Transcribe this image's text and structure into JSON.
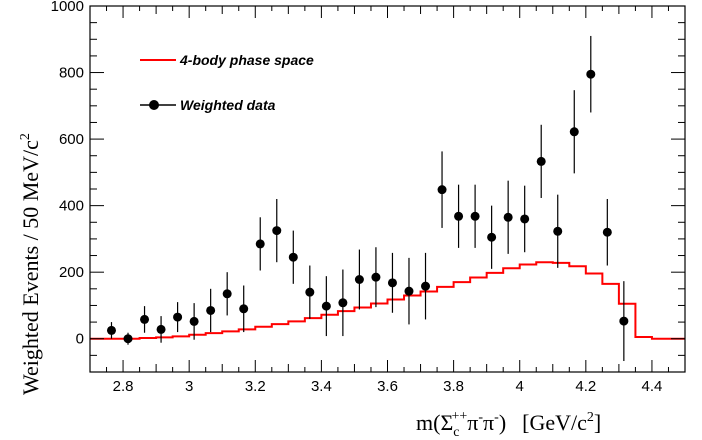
{
  "chart_data": {
    "type": "scatter",
    "xlabel_main": "m(Σ",
    "xlabel_sub": "c",
    "xlabel_sup": "++",
    "xlabel_mid": "π",
    "xlabel_sup2": "-",
    "xlabel_mid2": "π",
    "xlabel_sup3": "-",
    "xlabel_tail": ")",
    "xlabel_unit": "[GeV/c",
    "xlabel_unit_sup": "2",
    "xlabel_unit_close": "]",
    "ylabel": "Weighted Events / 50 MeV/c",
    "ylabel_sup": "2",
    "xlim": [
      2.7,
      4.5
    ],
    "ylim": [
      -100,
      1000
    ],
    "x_ticks": [
      2.8,
      3.0,
      3.2,
      3.4,
      3.6,
      3.8,
      4.0,
      4.2,
      4.4
    ],
    "x_tick_labels": [
      "2.8",
      "3",
      "3.2",
      "3.4",
      "3.6",
      "3.8",
      "4",
      "4.2",
      "4.4"
    ],
    "y_ticks": [
      0,
      200,
      400,
      600,
      800,
      1000
    ],
    "y_tick_labels": [
      "0",
      "200",
      "400",
      "600",
      "800",
      "1000"
    ],
    "grid": false,
    "legend_position": "top-left",
    "series": [
      {
        "name": "4-body phase space",
        "style": "histogram-step",
        "color": "#ff0000",
        "bin_edges": [
          2.7,
          2.75,
          2.8,
          2.85,
          2.9,
          2.95,
          3.0,
          3.05,
          3.1,
          3.15,
          3.2,
          3.25,
          3.3,
          3.35,
          3.4,
          3.45,
          3.5,
          3.55,
          3.6,
          3.65,
          3.7,
          3.75,
          3.8,
          3.85,
          3.9,
          3.95,
          4.0,
          4.05,
          4.1,
          4.15,
          4.2,
          4.25,
          4.3,
          4.35,
          4.4,
          4.45,
          4.5
        ],
        "values": [
          0,
          0,
          0,
          2,
          4,
          7,
          12,
          17,
          22,
          28,
          36,
          44,
          52,
          62,
          72,
          83,
          94,
          106,
          118,
          130,
          142,
          156,
          170,
          184,
          198,
          212,
          223,
          230,
          228,
          218,
          196,
          165,
          105,
          5,
          0,
          0
        ]
      },
      {
        "name": "Weighted data",
        "style": "points-with-errors",
        "color": "#000000",
        "x": [
          2.765,
          2.815,
          2.865,
          2.915,
          2.965,
          3.015,
          3.065,
          3.115,
          3.165,
          3.215,
          3.265,
          3.315,
          3.365,
          3.415,
          3.465,
          3.515,
          3.565,
          3.615,
          3.665,
          3.715,
          3.765,
          3.815,
          3.865,
          3.915,
          3.965,
          4.015,
          4.065,
          4.115,
          4.165,
          4.215,
          4.265,
          4.315
        ],
        "y": [
          25,
          0,
          58,
          28,
          65,
          52,
          85,
          135,
          90,
          285,
          325,
          245,
          140,
          98,
          108,
          178,
          185,
          168,
          143,
          158,
          448,
          368,
          368,
          305,
          365,
          360,
          533,
          323,
          622,
          795,
          320,
          53
        ],
        "yerr": [
          25,
          18,
          40,
          40,
          45,
          55,
          65,
          65,
          70,
          80,
          95,
          80,
          80,
          90,
          100,
          90,
          90,
          90,
          100,
          100,
          115,
          95,
          95,
          95,
          110,
          100,
          110,
          110,
          125,
          115,
          100,
          120
        ]
      }
    ]
  }
}
